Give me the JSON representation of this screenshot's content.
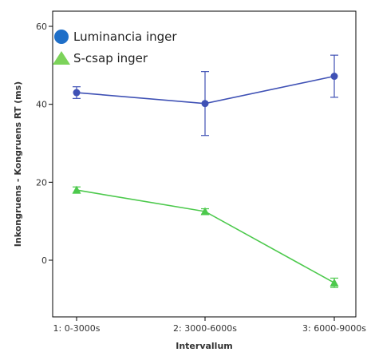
{
  "chart_data": {
    "type": "line",
    "title": "",
    "xlabel": "Intervallum",
    "ylabel": "Inkongruens - Kongruens RT (ms)",
    "categories": [
      "1: 0-3000s",
      "2: 3000-6000s",
      "3: 6000-9000s"
    ],
    "yticks": [
      0,
      20,
      40,
      60
    ],
    "ylim": [
      -12,
      64
    ],
    "grid": false,
    "legend_position": "top-left",
    "series": [
      {
        "name": "Luminancia inger",
        "marker": "circle",
        "color": "#3f51b5",
        "legend_color": "#1f6fc8",
        "values": [
          43,
          40.2,
          47.2
        ],
        "error_low": [
          41.5,
          32,
          41.8
        ],
        "error_high": [
          44.5,
          48.4,
          52.6
        ]
      },
      {
        "name": "S-csap inger",
        "marker": "triangle",
        "color": "#4cc94c",
        "legend_color": "#7cd35a",
        "values": [
          18,
          12.5,
          -5.8
        ],
        "error_low": [
          17.2,
          11.8,
          -7
        ],
        "error_high": [
          18.8,
          13.2,
          -4.6
        ]
      }
    ]
  }
}
